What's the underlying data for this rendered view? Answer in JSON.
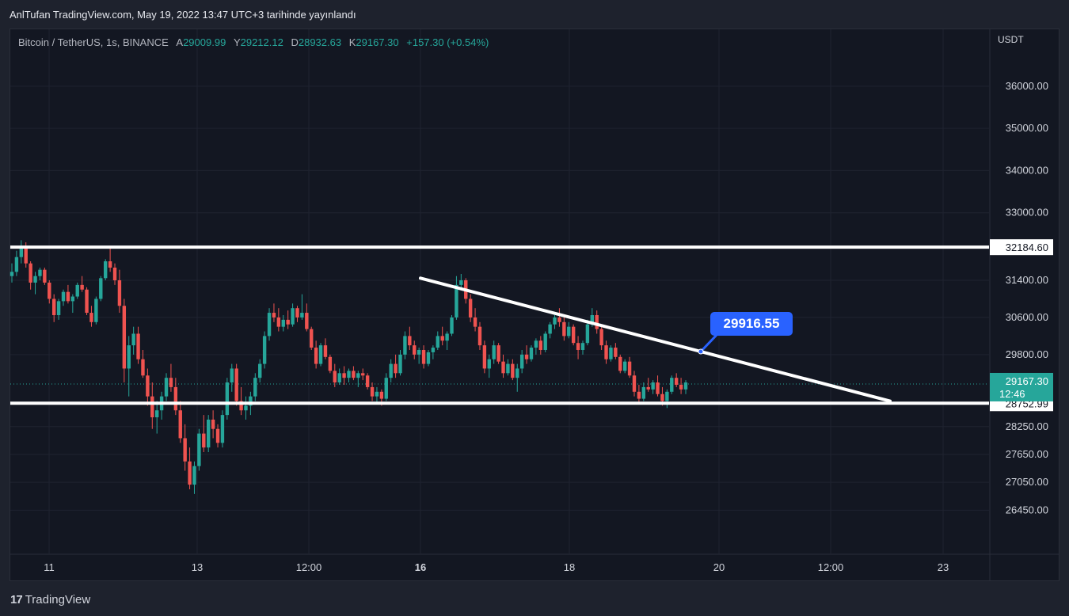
{
  "header": {
    "publish_text": "AnlTufan TradingView.com, May 19, 2022 13:47 UTC+3 tarihinde yayınlandı"
  },
  "legend": {
    "symbol": "Bitcoin / TetherUS, 1s, BINANCE",
    "open_label": "A",
    "open": "29009.99",
    "high_label": "Y",
    "high": "29212.12",
    "low_label": "D",
    "low": "28932.63",
    "close_label": "K",
    "close": "29167.30",
    "change": "+157.30 (+0.54%)"
  },
  "price_axis": {
    "currency": "USDT"
  },
  "footer": {
    "brand": "TradingView",
    "logo_text": "17"
  },
  "colors": {
    "up": "#26a69a",
    "down": "#ef5350",
    "background": "#131722",
    "grid": "#1f2330",
    "line": "#ffffff",
    "callout": "#2962ff"
  },
  "chart_data": {
    "type": "candlestick",
    "symbol": "Bitcoin / TetherUS",
    "interval": "1s",
    "exchange": "BINANCE",
    "y_ticks": [
      36000,
      35000,
      34000,
      33000,
      31400,
      30600,
      29800,
      28250,
      27650,
      27050,
      26450
    ],
    "y_tick_labels": [
      "36000.00",
      "35000.00",
      "34000.00",
      "33000.00",
      "31400.00",
      "30600.00",
      "29800.00",
      "28250.00",
      "27650.00",
      "27050.00",
      "26450.00"
    ],
    "x_ticks": [
      {
        "label": "11",
        "bold": false
      },
      {
        "label": "13",
        "bold": false
      },
      {
        "label": "12:00",
        "bold": false
      },
      {
        "label": "16",
        "bold": true
      },
      {
        "label": "18",
        "bold": false
      },
      {
        "label": "20",
        "bold": false
      },
      {
        "label": "12:00",
        "bold": false
      },
      {
        "label": "23",
        "bold": false
      }
    ],
    "levels": [
      {
        "name": "resistance",
        "price": 32184.6,
        "label": "32184.60"
      },
      {
        "name": "support",
        "price": 28752.99,
        "label": "28752.99"
      }
    ],
    "last_price": {
      "price": 29167.3,
      "label": "29167.30",
      "countdown": "12:46"
    },
    "trendline": {
      "start_price": 31450,
      "end_price": 28800
    },
    "callout": {
      "label": "29916.55",
      "price": 29916.55
    },
    "candles": [
      [
        31500,
        31800,
        31350,
        31600
      ],
      [
        31600,
        32100,
        31500,
        31950
      ],
      [
        31950,
        32350,
        31800,
        32200
      ],
      [
        32200,
        32300,
        31700,
        31800
      ],
      [
        31800,
        31850,
        31200,
        31350
      ],
      [
        31350,
        31600,
        31100,
        31500
      ],
      [
        31500,
        31700,
        31400,
        31650
      ],
      [
        31650,
        31700,
        31300,
        31350
      ],
      [
        31350,
        31400,
        30900,
        31000
      ],
      [
        31000,
        31100,
        30500,
        30650
      ],
      [
        30650,
        31000,
        30550,
        30950
      ],
      [
        30950,
        31200,
        30850,
        31150
      ],
      [
        31150,
        31300,
        30900,
        30950
      ],
      [
        30950,
        31100,
        30700,
        31050
      ],
      [
        31050,
        31350,
        31000,
        31300
      ],
      [
        31300,
        31500,
        31150,
        31200
      ],
      [
        31200,
        31250,
        30650,
        30700
      ],
      [
        30700,
        30850,
        30400,
        30500
      ],
      [
        30500,
        31050,
        30450,
        31000
      ],
      [
        31000,
        31500,
        30950,
        31450
      ],
      [
        31450,
        31900,
        31400,
        31850
      ],
      [
        31850,
        32200,
        31600,
        31700
      ],
      [
        31700,
        31800,
        31300,
        31400
      ],
      [
        31400,
        31650,
        30700,
        30850
      ],
      [
        30850,
        31000,
        29200,
        29500
      ],
      [
        29500,
        30200,
        28900,
        30000
      ],
      [
        30000,
        30400,
        29800,
        30250
      ],
      [
        30250,
        30400,
        29600,
        29700
      ],
      [
        29700,
        29900,
        29300,
        29350
      ],
      [
        29350,
        29500,
        28700,
        28900
      ],
      [
        28900,
        29200,
        28200,
        28450
      ],
      [
        28450,
        28800,
        28100,
        28600
      ],
      [
        28600,
        29000,
        28400,
        28900
      ],
      [
        28900,
        29400,
        28800,
        29300
      ],
      [
        29300,
        29600,
        29000,
        29100
      ],
      [
        29100,
        29300,
        28500,
        28600
      ],
      [
        28600,
        28800,
        27900,
        28000
      ],
      [
        28000,
        28300,
        27300,
        27500
      ],
      [
        27500,
        27800,
        26900,
        27000
      ],
      [
        27000,
        27500,
        26800,
        27400
      ],
      [
        27400,
        28200,
        27300,
        28100
      ],
      [
        28100,
        28500,
        27700,
        27800
      ],
      [
        27800,
        28500,
        27700,
        28400
      ],
      [
        28400,
        28600,
        28000,
        28200
      ],
      [
        28200,
        28300,
        27800,
        27900
      ],
      [
        27900,
        28600,
        27800,
        28500
      ],
      [
        28500,
        29300,
        28400,
        29200
      ],
      [
        29200,
        29600,
        29000,
        29500
      ],
      [
        29500,
        29600,
        28700,
        28800
      ],
      [
        28800,
        29100,
        28500,
        28600
      ],
      [
        28600,
        28900,
        28400,
        28700
      ],
      [
        28700,
        29000,
        28500,
        28900
      ],
      [
        28900,
        29400,
        28800,
        29300
      ],
      [
        29300,
        29700,
        29200,
        29600
      ],
      [
        29600,
        30300,
        29500,
        30200
      ],
      [
        30200,
        30800,
        30100,
        30700
      ],
      [
        30700,
        30900,
        30500,
        30600
      ],
      [
        30600,
        30800,
        30300,
        30400
      ],
      [
        30400,
        30650,
        30300,
        30550
      ],
      [
        30550,
        30750,
        30350,
        30450
      ],
      [
        30450,
        30900,
        30400,
        30800
      ],
      [
        30800,
        30850,
        30500,
        30600
      ],
      [
        30600,
        31100,
        30550,
        30700
      ],
      [
        30700,
        30900,
        30300,
        30350
      ],
      [
        30350,
        30400,
        29900,
        29950
      ],
      [
        29950,
        30100,
        29500,
        29600
      ],
      [
        29600,
        30050,
        29550,
        30000
      ],
      [
        30000,
        30150,
        29700,
        29750
      ],
      [
        29750,
        29800,
        29400,
        29450
      ],
      [
        29450,
        29600,
        29100,
        29200
      ],
      [
        29200,
        29500,
        29150,
        29400
      ],
      [
        29400,
        29550,
        29150,
        29300
      ],
      [
        29300,
        29500,
        29200,
        29450
      ],
      [
        29450,
        29550,
        29250,
        29300
      ],
      [
        29300,
        29450,
        29100,
        29400
      ],
      [
        29400,
        29500,
        29250,
        29350
      ],
      [
        29350,
        29400,
        29050,
        29100
      ],
      [
        29100,
        29200,
        28800,
        28900
      ],
      [
        28900,
        29100,
        28750,
        29000
      ],
      [
        29000,
        29050,
        28700,
        28850
      ],
      [
        28850,
        29400,
        28800,
        29300
      ],
      [
        29300,
        29700,
        29200,
        29600
      ],
      [
        29600,
        29800,
        29300,
        29400
      ],
      [
        29400,
        29900,
        29350,
        29800
      ],
      [
        29800,
        30300,
        29700,
        30200
      ],
      [
        30200,
        30400,
        29900,
        30000
      ],
      [
        30000,
        30100,
        29700,
        29800
      ],
      [
        29800,
        29950,
        29600,
        29900
      ],
      [
        29900,
        30000,
        29500,
        29600
      ],
      [
        29600,
        29900,
        29550,
        29850
      ],
      [
        29850,
        30000,
        29700,
        29950
      ],
      [
        29950,
        30300,
        29900,
        30200
      ],
      [
        30200,
        30400,
        30000,
        30100
      ],
      [
        30100,
        30300,
        29900,
        30250
      ],
      [
        30250,
        30650,
        30200,
        30600
      ],
      [
        30600,
        31500,
        30550,
        31300
      ],
      [
        31300,
        31550,
        31200,
        31400
      ],
      [
        31400,
        31450,
        30900,
        31000
      ],
      [
        31000,
        31100,
        30500,
        30600
      ],
      [
        30600,
        30800,
        30300,
        30400
      ],
      [
        30400,
        30500,
        29900,
        30000
      ],
      [
        30000,
        30100,
        29400,
        29500
      ],
      [
        29500,
        29800,
        29300,
        29700
      ],
      [
        29700,
        30100,
        29600,
        30000
      ],
      [
        30000,
        30050,
        29600,
        29650
      ],
      [
        29650,
        29800,
        29300,
        29400
      ],
      [
        29400,
        29700,
        29350,
        29600
      ],
      [
        29600,
        29700,
        29250,
        29300
      ],
      [
        29300,
        29600,
        29000,
        29500
      ],
      [
        29500,
        29900,
        29400,
        29800
      ],
      [
        29800,
        30000,
        29600,
        29700
      ],
      [
        29700,
        30000,
        29650,
        29950
      ],
      [
        29950,
        30150,
        29800,
        30100
      ],
      [
        30100,
        30200,
        29800,
        29900
      ],
      [
        29900,
        30300,
        29850,
        30250
      ],
      [
        30250,
        30500,
        30150,
        30450
      ],
      [
        30450,
        30650,
        30350,
        30600
      ],
      [
        30600,
        30800,
        30400,
        30500
      ],
      [
        30500,
        30600,
        30100,
        30200
      ],
      [
        30200,
        30500,
        30150,
        30400
      ],
      [
        30400,
        30450,
        30000,
        30050
      ],
      [
        30050,
        30200,
        29700,
        29900
      ],
      [
        29900,
        30100,
        29800,
        30050
      ],
      [
        30050,
        30550,
        30000,
        30450
      ],
      [
        30450,
        30800,
        30400,
        30650
      ],
      [
        30650,
        30750,
        30250,
        30350
      ],
      [
        30350,
        30400,
        29900,
        30000
      ],
      [
        30000,
        30100,
        29600,
        29700
      ],
      [
        29700,
        30000,
        29650,
        29950
      ],
      [
        29950,
        30050,
        29700,
        29750
      ],
      [
        29750,
        29800,
        29400,
        29450
      ],
      [
        29450,
        29700,
        29400,
        29650
      ],
      [
        29650,
        29750,
        29300,
        29350
      ],
      [
        29350,
        29450,
        28900,
        29000
      ],
      [
        29000,
        29150,
        28750,
        28850
      ],
      [
        28850,
        29200,
        28800,
        29100
      ],
      [
        29100,
        29300,
        29000,
        29050
      ],
      [
        29050,
        29250,
        28950,
        29200
      ],
      [
        29200,
        29350,
        28900,
        28950
      ],
      [
        28950,
        29100,
        28700,
        28800
      ],
      [
        28800,
        29050,
        28650,
        29000
      ],
      [
        29000,
        29350,
        28950,
        29300
      ],
      [
        29300,
        29400,
        29100,
        29150
      ],
      [
        29150,
        29300,
        28950,
        29050
      ],
      [
        29050,
        29250,
        28950,
        29200
      ]
    ]
  }
}
